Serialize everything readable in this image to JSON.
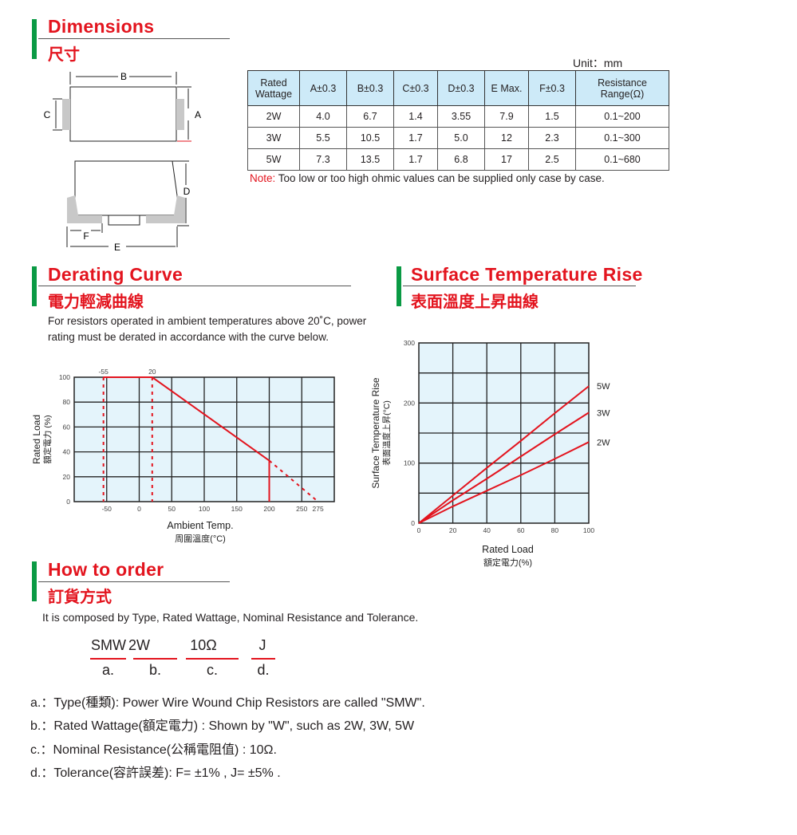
{
  "dimensions": {
    "title_en": "Dimensions",
    "title_zh": "尺寸",
    "unit": "Unit：mm",
    "drawing_labels": {
      "a": "A",
      "b": "B",
      "c": "C",
      "d": "D",
      "e": "E",
      "f": "F"
    },
    "table": {
      "headers": [
        "Rated Wattage",
        "A±0.3",
        "B±0.3",
        "C±0.3",
        "D±0.3",
        "E Max.",
        "F±0.3",
        "Resistance Range(Ω)"
      ],
      "rows": [
        [
          "2W",
          "4.0",
          "6.7",
          "1.4",
          "3.55",
          "7.9",
          "1.5",
          "0.1~200"
        ],
        [
          "3W",
          "5.5",
          "10.5",
          "1.7",
          "5.0",
          "12",
          "2.3",
          "0.1~300"
        ],
        [
          "5W",
          "7.3",
          "13.5",
          "1.7",
          "6.8",
          "17",
          "2.5",
          "0.1~680"
        ]
      ]
    },
    "note_label": "Note:",
    "note_text": "Too low or too high ohmic values can be supplied only case by case."
  },
  "derating": {
    "title_en": "Derating Curve",
    "title_zh": "電力輕減曲線",
    "description": "For resistors operated in ambient temperatures above 20˚C, power rating must be derated in accordance with the curve below."
  },
  "surface": {
    "title_en": "Surface Temperature Rise",
    "title_zh": "表面溫度上昇曲線"
  },
  "chart_data": [
    {
      "type": "line",
      "xlabel": "Ambient Temp.",
      "xlabel_zh": "周圍溫度(°C)",
      "ylabel": "Rated Load",
      "ylabel_zh": "額定電力 (%)",
      "xlim": [
        -100,
        300
      ],
      "ylim": [
        0,
        100
      ],
      "x_ticks": [
        -50,
        0,
        50,
        100,
        150,
        200,
        250,
        275
      ],
      "y_ticks": [
        0,
        20,
        40,
        60,
        80,
        100
      ],
      "top_annotations": [
        "-55",
        "20"
      ],
      "grid": true,
      "color": "#e3141e",
      "background": "#e4f4fb",
      "series": [
        {
          "style": "solid",
          "x": [
            -55,
            20,
            200
          ],
          "y": [
            100,
            100,
            33
          ]
        },
        {
          "style": "solid",
          "x": [
            200,
            200
          ],
          "y": [
            33,
            0
          ]
        },
        {
          "style": "dashed",
          "x": [
            200,
            275
          ],
          "y": [
            33,
            0
          ]
        },
        {
          "style": "dashed",
          "x": [
            -55,
            -55
          ],
          "y": [
            100,
            0
          ]
        },
        {
          "style": "dashed",
          "x": [
            20,
            20
          ],
          "y": [
            100,
            0
          ]
        }
      ]
    },
    {
      "type": "line",
      "xlabel": "Rated Load",
      "xlabel_zh": "額定電力(%)",
      "ylabel": "Surface Temperature Rise",
      "ylabel_zh": "表面溫度上昇(°C)",
      "xlim": [
        0,
        100
      ],
      "ylim": [
        0,
        300
      ],
      "x_ticks": [
        0,
        20,
        40,
        60,
        80,
        100
      ],
      "y_ticks": [
        0,
        100,
        200,
        300
      ],
      "grid": true,
      "color": "#e3141e",
      "background": "#e4f4fb",
      "series": [
        {
          "name": "5W",
          "x": [
            0,
            20,
            40,
            60,
            80,
            100
          ],
          "y": [
            0,
            46,
            92,
            137,
            183,
            228
          ]
        },
        {
          "name": "3W",
          "x": [
            0,
            20,
            40,
            60,
            80,
            100
          ],
          "y": [
            0,
            38,
            74,
            111,
            148,
            184
          ]
        },
        {
          "name": "2W",
          "x": [
            0,
            20,
            40,
            60,
            80,
            100
          ],
          "y": [
            0,
            28,
            54,
            80,
            107,
            135
          ]
        }
      ]
    }
  ],
  "order": {
    "title_en": "How to order",
    "title_zh": "訂貨方式",
    "intro": "It is composed by Type, Rated Wattage, Nominal Resistance and Tolerance.",
    "code_parts": [
      {
        "value": "SMW",
        "key": "a."
      },
      {
        "value": "2W",
        "key": "b."
      },
      {
        "value": "10Ω",
        "key": "c."
      },
      {
        "value": "J",
        "key": "d."
      }
    ],
    "explanations": [
      "a.：Type(種類): Power Wire Wound Chip Resistors are called \"SMW\".",
      "b.：Rated Wattage(額定電力) : Shown by \"W\", such as 2W, 3W, 5W",
      "c.：Nominal Resistance(公稱電阻值) : 10Ω.",
      "d.：Tolerance(容許誤差): F= ±1% , J= ±5% ."
    ]
  }
}
